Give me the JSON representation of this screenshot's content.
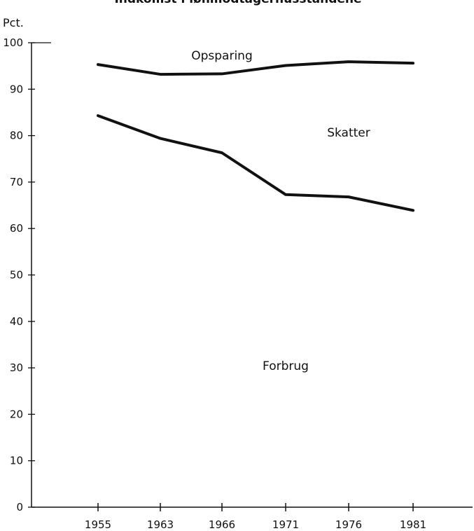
{
  "chart_data": {
    "type": "line",
    "title": "Indkomst i lønmodtagerhusstandene",
    "ylabel": "Pct.",
    "xlabel": "",
    "ylim": [
      0,
      100
    ],
    "yticks": [
      0,
      10,
      20,
      30,
      40,
      50,
      60,
      70,
      80,
      90,
      100
    ],
    "categories": [
      "1955",
      "1963",
      "1966",
      "1971",
      "1976",
      "1981"
    ],
    "series": [
      {
        "name": "",
        "values": [
          95.3,
          93.2,
          93.3,
          95.1,
          95.9,
          95.6
        ]
      },
      {
        "name": "",
        "values": [
          84.3,
          79.4,
          76.3,
          67.3,
          66.8,
          63.9
        ]
      }
    ],
    "annotations": [
      {
        "text": "Opsparing",
        "x": "1966",
        "y": 97.3
      },
      {
        "text": "Skatter",
        "x": "1976",
        "y": 80.7
      },
      {
        "text": "Forbrug",
        "x": "1971",
        "y": 30.5
      }
    ],
    "grid": false,
    "colors": {
      "line": "#111111",
      "axis": "#111111"
    }
  }
}
